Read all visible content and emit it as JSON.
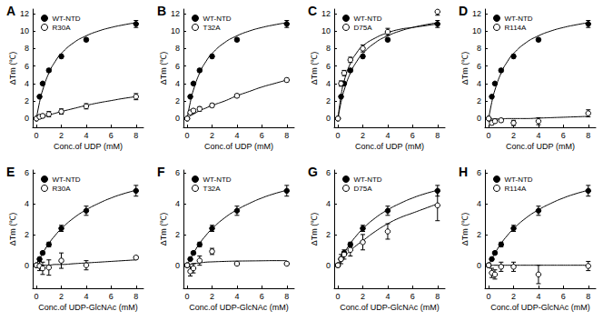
{
  "chart_data": [
    {
      "type": "scatter",
      "title": "A",
      "x_label": "Conc.of UDP (mM)",
      "y_label": "ΔTm (℃)",
      "xlim": [
        -0.3,
        8.6
      ],
      "xticks": [
        0,
        2,
        4,
        6,
        8
      ],
      "ylim": [
        -1,
        12.5
      ],
      "yticks": [
        0,
        2,
        4,
        6,
        8,
        10,
        12
      ],
      "grid": false,
      "legend": "upper left",
      "x": [
        0,
        0.25,
        0.5,
        1,
        2,
        4,
        8
      ],
      "fit_x": [
        0,
        0.25,
        0.5,
        1,
        1.5,
        2,
        3,
        4,
        5,
        6,
        7,
        8
      ],
      "series": [
        {
          "name": "WT-NTD",
          "color": "#000000",
          "marker": "filled",
          "values": [
            0,
            2.5,
            4.0,
            5.5,
            7.1,
            9.0,
            10.8
          ],
          "errors": [
            0.1,
            0.15,
            0.15,
            0.2,
            0.2,
            0.2,
            0.4
          ],
          "fit": [
            0,
            1.86,
            3.25,
            5.2,
            6.5,
            7.43,
            8.67,
            9.45,
            10.0,
            10.4,
            10.7,
            10.95
          ]
        },
        {
          "name": "R30A",
          "color": "#000000",
          "marker": "open",
          "values": [
            0,
            0.2,
            0.3,
            0.5,
            0.8,
            1.4,
            2.5
          ],
          "errors": [
            0.1,
            0.2,
            0.2,
            0.3,
            0.3,
            0.3,
            0.35
          ],
          "fit": [
            0,
            0.1,
            0.2,
            0.4,
            0.6,
            0.8,
            1.15,
            1.5,
            1.8,
            2.05,
            2.3,
            2.5
          ]
        }
      ]
    },
    {
      "type": "scatter",
      "title": "B",
      "x_label": "Conc.of UDP (mM)",
      "y_label": "ΔTm (℃)",
      "xlim": [
        -0.3,
        8.6
      ],
      "xticks": [
        0,
        2,
        4,
        6,
        8
      ],
      "ylim": [
        -1,
        12.5
      ],
      "yticks": [
        0,
        2,
        4,
        6,
        8,
        10,
        12
      ],
      "grid": false,
      "legend": "upper left",
      "x": [
        0,
        0.25,
        0.5,
        1,
        2,
        4,
        8
      ],
      "fit_x": [
        0,
        0.25,
        0.5,
        1,
        1.5,
        2,
        3,
        4,
        5,
        6,
        7,
        8
      ],
      "series": [
        {
          "name": "WT-NTD",
          "color": "#000000",
          "marker": "filled",
          "values": [
            0,
            2.5,
            4.0,
            5.5,
            7.1,
            9.0,
            10.8
          ],
          "errors": [
            0.1,
            0.15,
            0.15,
            0.2,
            0.2,
            0.2,
            0.4
          ],
          "fit": [
            0,
            1.86,
            3.25,
            5.2,
            6.5,
            7.43,
            8.67,
            9.45,
            10.0,
            10.4,
            10.7,
            10.95
          ]
        },
        {
          "name": "T32A",
          "color": "#000000",
          "marker": "open",
          "values": [
            0,
            0.7,
            0.9,
            1.1,
            1.5,
            2.6,
            4.4
          ],
          "errors": [
            0.1,
            0.2,
            0.2,
            0.25,
            0.2,
            0.2,
            0.2
          ],
          "fit": [
            0,
            0.3,
            0.5,
            0.9,
            1.2,
            1.5,
            2.0,
            2.6,
            3.1,
            3.6,
            4.0,
            4.4
          ]
        }
      ]
    },
    {
      "type": "scatter",
      "title": "C",
      "x_label": "Conc.of UDP (mM)",
      "y_label": "ΔTm (℃)",
      "xlim": [
        -0.3,
        8.6
      ],
      "xticks": [
        0,
        2,
        4,
        6,
        8
      ],
      "ylim": [
        -1,
        12.5
      ],
      "yticks": [
        0,
        2,
        4,
        6,
        8,
        10,
        12
      ],
      "grid": false,
      "legend": "upper left",
      "x": [
        0,
        0.25,
        0.5,
        1,
        2,
        4,
        8
      ],
      "fit_x": [
        0,
        0.25,
        0.5,
        1,
        1.5,
        2,
        3,
        4,
        5,
        6,
        7,
        8
      ],
      "series": [
        {
          "name": "WT-NTD",
          "color": "#000000",
          "marker": "filled",
          "values": [
            0,
            2.5,
            4.0,
            5.5,
            7.1,
            9.0,
            10.8
          ],
          "errors": [
            0.1,
            0.15,
            0.15,
            0.2,
            0.2,
            0.2,
            0.4
          ],
          "fit": [
            0,
            1.86,
            3.25,
            5.2,
            6.5,
            7.43,
            8.67,
            9.45,
            10.0,
            10.4,
            10.7,
            10.95
          ]
        },
        {
          "name": "D75A",
          "color": "#000000",
          "marker": "open",
          "values": [
            0,
            4.0,
            5.2,
            6.7,
            8.0,
            9.9,
            12.2
          ],
          "errors": [
            0.1,
            0.3,
            0.3,
            0.3,
            0.4,
            0.4,
            0.4
          ],
          "fit": [
            0,
            2.6,
            4.3,
            6.3,
            7.5,
            8.3,
            9.2,
            9.8,
            10.2,
            10.4,
            10.6,
            10.8
          ]
        }
      ]
    },
    {
      "type": "scatter",
      "title": "D",
      "x_label": "Conc.of UDP (mM)",
      "y_label": "ΔTm (℃)",
      "xlim": [
        -0.3,
        8.6
      ],
      "xticks": [
        0,
        2,
        4,
        6,
        8
      ],
      "ylim": [
        -1,
        12.5
      ],
      "yticks": [
        0,
        2,
        4,
        6,
        8,
        10,
        12
      ],
      "grid": false,
      "legend": "upper left",
      "x": [
        0,
        0.25,
        0.5,
        1,
        2,
        4,
        8
      ],
      "fit_x": [
        0,
        0.25,
        0.5,
        1,
        1.5,
        2,
        3,
        4,
        5,
        6,
        7,
        8
      ],
      "series": [
        {
          "name": "WT-NTD",
          "color": "#000000",
          "marker": "filled",
          "values": [
            0,
            2.5,
            4.0,
            5.5,
            7.1,
            9.0,
            10.8
          ],
          "errors": [
            0.1,
            0.15,
            0.15,
            0.2,
            0.2,
            0.2,
            0.4
          ],
          "fit": [
            0,
            1.86,
            3.25,
            5.2,
            6.5,
            7.43,
            8.67,
            9.45,
            10.0,
            10.4,
            10.7,
            10.95
          ]
        },
        {
          "name": "R114A",
          "color": "#000000",
          "marker": "open",
          "values": [
            0,
            -0.5,
            -0.3,
            -0.2,
            -0.5,
            -0.3,
            0.6
          ],
          "errors": [
            0.1,
            0.2,
            0.2,
            0.2,
            0.3,
            0.4,
            0.4
          ],
          "fit": [
            0,
            -0.05,
            -0.05,
            -0.05,
            0,
            0,
            0,
            0.05,
            0.1,
            0.15,
            0.2,
            0.25
          ]
        }
      ]
    },
    {
      "type": "scatter",
      "title": "E",
      "x_label": "Conc.of UDP-GlcNAc (mM)",
      "y_label": "ΔTm (℃)",
      "xlim": [
        -0.3,
        8.6
      ],
      "xticks": [
        0,
        2,
        4,
        6,
        8
      ],
      "ylim": [
        -1.5,
        6.2
      ],
      "yticks": [
        0,
        2,
        4,
        6
      ],
      "grid": false,
      "legend": "upper left",
      "x": [
        0,
        0.25,
        0.5,
        1,
        2,
        4,
        8
      ],
      "fit_x": [
        0,
        0.25,
        0.5,
        1,
        1.5,
        2,
        3,
        4,
        5,
        6,
        7,
        8
      ],
      "series": [
        {
          "name": "WT-NTD",
          "color": "#000000",
          "marker": "filled",
          "values": [
            0,
            0.4,
            0.8,
            1.35,
            2.4,
            3.55,
            4.85
          ],
          "errors": [
            0.1,
            0.1,
            0.1,
            0.15,
            0.2,
            0.3,
            0.35
          ],
          "fit": [
            0,
            0.41,
            0.78,
            1.42,
            1.94,
            2.38,
            3.08,
            3.61,
            4.03,
            4.38,
            4.66,
            4.88
          ]
        },
        {
          "name": "R30A",
          "color": "#000000",
          "marker": "open",
          "values": [
            0,
            -0.05,
            -0.2,
            -0.15,
            0.3,
            0,
            0.5
          ],
          "errors": [
            0.1,
            0.3,
            0.4,
            0.5,
            0.5,
            0.3,
            0.1
          ],
          "fit": [
            0,
            0,
            0,
            0,
            0.05,
            0.05,
            0.1,
            0.15,
            0.2,
            0.25,
            0.3,
            0.35
          ]
        }
      ]
    },
    {
      "type": "scatter",
      "title": "F",
      "x_label": "Conc.of UDP-GlcNAc (mM)",
      "y_label": "ΔTm (℃)",
      "xlim": [
        -0.3,
        8.6
      ],
      "xticks": [
        0,
        2,
        4,
        6,
        8
      ],
      "ylim": [
        -1.5,
        6.2
      ],
      "yticks": [
        0,
        2,
        4,
        6
      ],
      "grid": false,
      "legend": "upper left",
      "x": [
        0,
        0.25,
        0.5,
        1,
        2,
        4,
        8
      ],
      "fit_x": [
        0,
        0.25,
        0.5,
        1,
        1.5,
        2,
        3,
        4,
        5,
        6,
        7,
        8
      ],
      "series": [
        {
          "name": "WT-NTD",
          "color": "#000000",
          "marker": "filled",
          "values": [
            0,
            0.4,
            0.8,
            1.35,
            2.4,
            3.55,
            4.85
          ],
          "errors": [
            0.1,
            0.1,
            0.1,
            0.15,
            0.2,
            0.3,
            0.35
          ],
          "fit": [
            0,
            0.41,
            0.78,
            1.42,
            1.94,
            2.38,
            3.08,
            3.61,
            4.03,
            4.38,
            4.66,
            4.88
          ]
        },
        {
          "name": "T32A",
          "color": "#000000",
          "marker": "open",
          "values": [
            0,
            -0.4,
            -0.2,
            0.3,
            0.9,
            0.1,
            0.1
          ],
          "errors": [
            0.1,
            0.3,
            0.3,
            0.3,
            0.2,
            0.1,
            0.1
          ],
          "fit": [
            0,
            0.05,
            0.1,
            0.15,
            0.2,
            0.22,
            0.25,
            0.27,
            0.28,
            0.29,
            0.3,
            0.3
          ]
        }
      ]
    },
    {
      "type": "scatter",
      "title": "G",
      "x_label": "Conc.of UDP-GlcNAc (mM)",
      "y_label": "ΔTm (℃)",
      "xlim": [
        -0.3,
        8.6
      ],
      "xticks": [
        0,
        2,
        4,
        6,
        8
      ],
      "ylim": [
        -1.5,
        6.2
      ],
      "yticks": [
        0,
        2,
        4,
        6
      ],
      "grid": false,
      "legend": "upper left",
      "x": [
        0,
        0.25,
        0.5,
        1,
        2,
        4,
        8
      ],
      "fit_x": [
        0,
        0.25,
        0.5,
        1,
        1.5,
        2,
        3,
        4,
        5,
        6,
        7,
        8
      ],
      "series": [
        {
          "name": "WT-NTD",
          "color": "#000000",
          "marker": "filled",
          "values": [
            0,
            0.4,
            0.8,
            1.35,
            2.4,
            3.55,
            4.85
          ],
          "errors": [
            0.1,
            0.1,
            0.1,
            0.15,
            0.2,
            0.3,
            0.35
          ],
          "fit": [
            0,
            0.41,
            0.78,
            1.42,
            1.94,
            2.38,
            3.08,
            3.61,
            4.03,
            4.38,
            4.66,
            4.88
          ]
        },
        {
          "name": "D75A",
          "color": "#000000",
          "marker": "open",
          "values": [
            0,
            0.4,
            0.7,
            1.0,
            1.5,
            2.2,
            3.9
          ],
          "errors": [
            0.1,
            0.3,
            0.3,
            0.4,
            0.5,
            0.5,
            1.0
          ],
          "fit": [
            0,
            0.3,
            0.55,
            0.95,
            1.3,
            1.6,
            2.2,
            2.7,
            3.1,
            3.4,
            3.7,
            4.0
          ]
        }
      ]
    },
    {
      "type": "scatter",
      "title": "H",
      "x_label": "Conc.of UDP-GlcNAc (mM)",
      "y_label": "ΔTm (℃)",
      "xlim": [
        -0.3,
        8.6
      ],
      "xticks": [
        0,
        2,
        4,
        6,
        8
      ],
      "ylim": [
        -1.5,
        6.2
      ],
      "yticks": [
        0,
        2,
        4,
        6
      ],
      "grid": false,
      "legend": "upper left",
      "x": [
        0,
        0.25,
        0.5,
        1,
        2,
        4,
        8
      ],
      "fit_x": [
        0,
        0.25,
        0.5,
        1,
        1.5,
        2,
        3,
        4,
        5,
        6,
        7,
        8
      ],
      "series": [
        {
          "name": "WT-NTD",
          "color": "#000000",
          "marker": "filled",
          "values": [
            0,
            0.4,
            0.8,
            1.35,
            2.4,
            3.55,
            4.85
          ],
          "errors": [
            0.1,
            0.1,
            0.1,
            0.15,
            0.2,
            0.3,
            0.35
          ],
          "fit": [
            0,
            0.41,
            0.78,
            1.42,
            1.94,
            2.38,
            3.08,
            3.61,
            4.03,
            4.38,
            4.66,
            4.88
          ]
        },
        {
          "name": "R114A",
          "color": "#000000",
          "marker": "open",
          "values": [
            0,
            -0.5,
            -0.6,
            -0.1,
            -0.1,
            -0.6,
            -0.05
          ],
          "errors": [
            0.1,
            0.3,
            0.3,
            0.3,
            0.3,
            0.6,
            0.3
          ],
          "fit": [
            0,
            0,
            0,
            0,
            0,
            0,
            0,
            0,
            0,
            0,
            0,
            0
          ]
        }
      ]
    }
  ]
}
